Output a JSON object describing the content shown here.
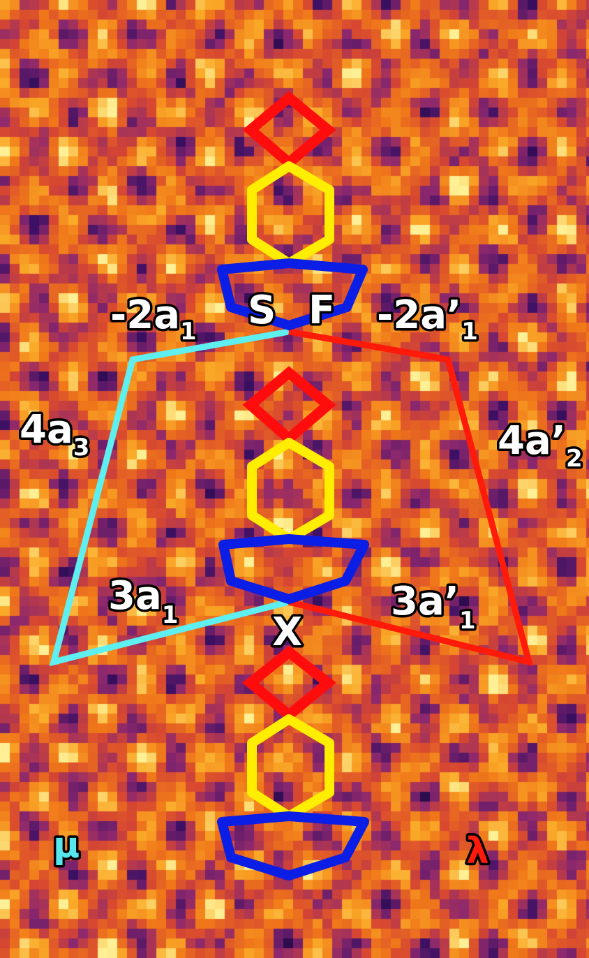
{
  "labels": {
    "S": "S",
    "F": "F",
    "X": "X",
    "mu": "μ",
    "lambda": "λ",
    "left_top": {
      "main": "-2a",
      "sub": "1"
    },
    "left_side": {
      "main": "4a",
      "sub": "3"
    },
    "left_bottom": {
      "main": "3a",
      "sub": "1"
    },
    "right_top": {
      "main": "-2a’",
      "sub": "1"
    },
    "right_side": {
      "main": "4a’",
      "sub": "2"
    },
    "right_bottom": {
      "main": "3a’",
      "sub": "1"
    }
  },
  "colors": {
    "square": "#ff0d0d",
    "hexagon": "#ffee00",
    "pentagon": "#0a1ee6",
    "mu_path": "#5ef0f0",
    "lambda_path": "#ff1a0a",
    "background_bright": "#f08a1e",
    "background_dark": "#2a0a4a"
  },
  "icons": {
    "square": "diamond-shape",
    "hexagon": "hexagon-shape",
    "pentagon": "pentagon-shape"
  }
}
